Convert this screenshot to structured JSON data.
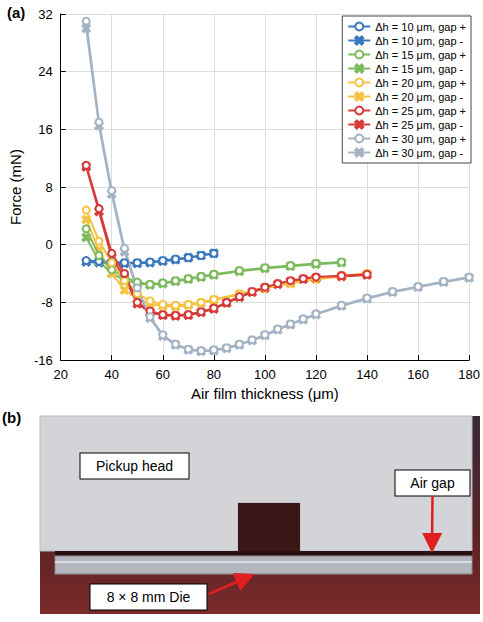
{
  "chart_data": {
    "type": "line",
    "panel_label": "(a)",
    "x_label": "Air film thickness (μm)",
    "y_label": "Force (mN)",
    "xlim": [
      20,
      180
    ],
    "xticks": [
      20,
      40,
      60,
      80,
      100,
      120,
      140,
      160,
      180
    ],
    "ylim": [
      -16,
      32
    ],
    "yticks": [
      -16,
      -8,
      0,
      8,
      16,
      24,
      32
    ],
    "grid": true,
    "legend": "upper right",
    "series": [
      {
        "name": "Δh = 10 μm, gap +",
        "color": "#3a78c0",
        "marker": "circle",
        "line_style": "solid",
        "x": [
          30,
          35,
          40,
          45,
          50,
          55,
          60,
          65,
          70,
          75,
          80
        ],
        "values": [
          -2.2,
          -2.3,
          -2.4,
          -2.5,
          -2.5,
          -2.4,
          -2.2,
          -2.0,
          -1.8,
          -1.5,
          -1.2
        ]
      },
      {
        "name": "Δh = 10 μm, gap -",
        "color": "#3a78c0",
        "marker": "x",
        "line_style": "solid",
        "x": [
          30,
          35,
          40,
          45,
          50,
          55,
          60,
          65,
          70,
          75,
          80
        ],
        "values": [
          -2.4,
          -2.5,
          -2.6,
          -2.6,
          -2.6,
          -2.5,
          -2.3,
          -2.1,
          -1.8,
          -1.5,
          -1.2
        ]
      },
      {
        "name": "Δh = 15 μm, gap +",
        "color": "#7dba5e",
        "marker": "circle",
        "line_style": "solid",
        "x": [
          30,
          35,
          40,
          45,
          50,
          55,
          60,
          65,
          70,
          75,
          80,
          90,
          100,
          110,
          120,
          130
        ],
        "values": [
          2.2,
          -1.5,
          -3.5,
          -4.5,
          -5.2,
          -5.5,
          -5.3,
          -5.0,
          -4.7,
          -4.4,
          -4.1,
          -3.6,
          -3.2,
          -2.9,
          -2.6,
          -2.4
        ]
      },
      {
        "name": "Δh = 15 μm, gap -",
        "color": "#7dba5e",
        "marker": "x",
        "line_style": "solid",
        "x": [
          30,
          35,
          40,
          45,
          50,
          55,
          60,
          65,
          70,
          75,
          80,
          90,
          100,
          110,
          120,
          130
        ],
        "values": [
          1.0,
          -2.3,
          -4.0,
          -4.9,
          -5.4,
          -5.6,
          -5.4,
          -5.1,
          -4.8,
          -4.5,
          -4.2,
          -3.7,
          -3.3,
          -3.0,
          -2.7,
          -2.5
        ]
      },
      {
        "name": "Δh = 20 μm, gap +",
        "color": "#f5c242",
        "marker": "circle",
        "line_style": "solid",
        "x": [
          30,
          35,
          40,
          45,
          50,
          55,
          60,
          65,
          70,
          75,
          80,
          90,
          100,
          110,
          120,
          130,
          140
        ],
        "values": [
          4.8,
          0.5,
          -2.5,
          -5.0,
          -6.8,
          -7.8,
          -8.3,
          -8.4,
          -8.3,
          -8.0,
          -7.6,
          -6.8,
          -6.0,
          -5.3,
          -4.7,
          -4.3,
          -4.0
        ]
      },
      {
        "name": "Δh = 20 μm, gap -",
        "color": "#f5c242",
        "marker": "x",
        "line_style": "solid",
        "x": [
          30,
          35,
          40,
          45,
          50,
          55,
          60,
          65,
          70,
          75,
          80,
          90,
          100,
          110,
          120,
          130,
          140
        ],
        "values": [
          3.5,
          -0.8,
          -4.0,
          -6.3,
          -7.5,
          -8.2,
          -8.5,
          -8.6,
          -8.4,
          -8.1,
          -7.7,
          -6.9,
          -6.1,
          -5.4,
          -4.8,
          -4.4,
          -4.1
        ]
      },
      {
        "name": "Δh = 25 μm, gap +",
        "color": "#d63a3a",
        "marker": "circle",
        "line_style": "solid",
        "x": [
          30,
          35,
          40,
          45,
          50,
          55,
          60,
          65,
          70,
          75,
          80,
          85,
          90,
          95,
          100,
          105,
          110,
          115,
          120,
          130,
          140
        ],
        "values": [
          11,
          5,
          -1.2,
          -4,
          -8,
          -9.2,
          -9.7,
          -9.8,
          -9.7,
          -9.3,
          -8.8,
          -8.0,
          -7.2,
          -6.5,
          -5.9,
          -5.4,
          -5.0,
          -4.7,
          -4.5,
          -4.3,
          -4.1
        ]
      },
      {
        "name": "Δh = 25 μm, gap -",
        "color": "#d63a3a",
        "marker": "x",
        "line_style": "solid",
        "x": [
          30,
          35,
          40,
          45,
          50,
          55,
          60,
          65,
          70,
          75,
          80,
          85,
          90,
          95,
          100,
          105,
          110,
          115,
          120,
          130,
          140
        ],
        "values": [
          10.8,
          4.6,
          -1.8,
          -4.6,
          -8.2,
          -9.4,
          -9.8,
          -9.9,
          -9.8,
          -9.4,
          -8.9,
          -8.1,
          -7.3,
          -6.6,
          -6.0,
          -5.5,
          -5.1,
          -4.8,
          -4.6,
          -4.4,
          -4.2
        ]
      },
      {
        "name": "Δh = 30 μm, gap +",
        "color": "#a4b3c4",
        "marker": "circle",
        "line_style": "solid",
        "x": [
          30,
          35,
          40,
          45,
          50,
          55,
          60,
          65,
          70,
          75,
          80,
          85,
          90,
          95,
          100,
          105,
          110,
          115,
          120,
          130,
          140,
          150,
          160,
          170,
          180
        ],
        "values": [
          31,
          17,
          7.5,
          -0.5,
          -6,
          -10,
          -12.5,
          -13.8,
          -14.5,
          -14.7,
          -14.6,
          -14.3,
          -13.8,
          -13.2,
          -12.5,
          -11.7,
          -11.0,
          -10.3,
          -9.6,
          -8.4,
          -7.4,
          -6.5,
          -5.8,
          -5.1,
          -4.5
        ]
      },
      {
        "name": "Δh = 30 μm, gap -",
        "color": "#a4b3c4",
        "marker": "x",
        "line_style": "solid",
        "x": [
          30,
          35,
          40,
          45,
          50,
          55,
          60,
          65,
          70,
          75,
          80,
          85,
          90,
          95,
          100,
          105,
          110,
          115,
          120,
          130,
          140,
          150,
          160,
          170,
          180
        ],
        "values": [
          30,
          16.5,
          7,
          -1,
          -6.3,
          -10.2,
          -12.7,
          -13.9,
          -14.6,
          -14.8,
          -14.7,
          -14.4,
          -13.9,
          -13.3,
          -12.6,
          -11.8,
          -11.1,
          -10.4,
          -9.7,
          -8.5,
          -7.5,
          -6.6,
          -5.9,
          -5.2,
          -4.6
        ]
      }
    ]
  },
  "photo": {
    "panel_label": "(b)",
    "labels": {
      "head": "Pickup head",
      "gap": "Air gap",
      "die": "8 × 8 mm Die"
    }
  }
}
